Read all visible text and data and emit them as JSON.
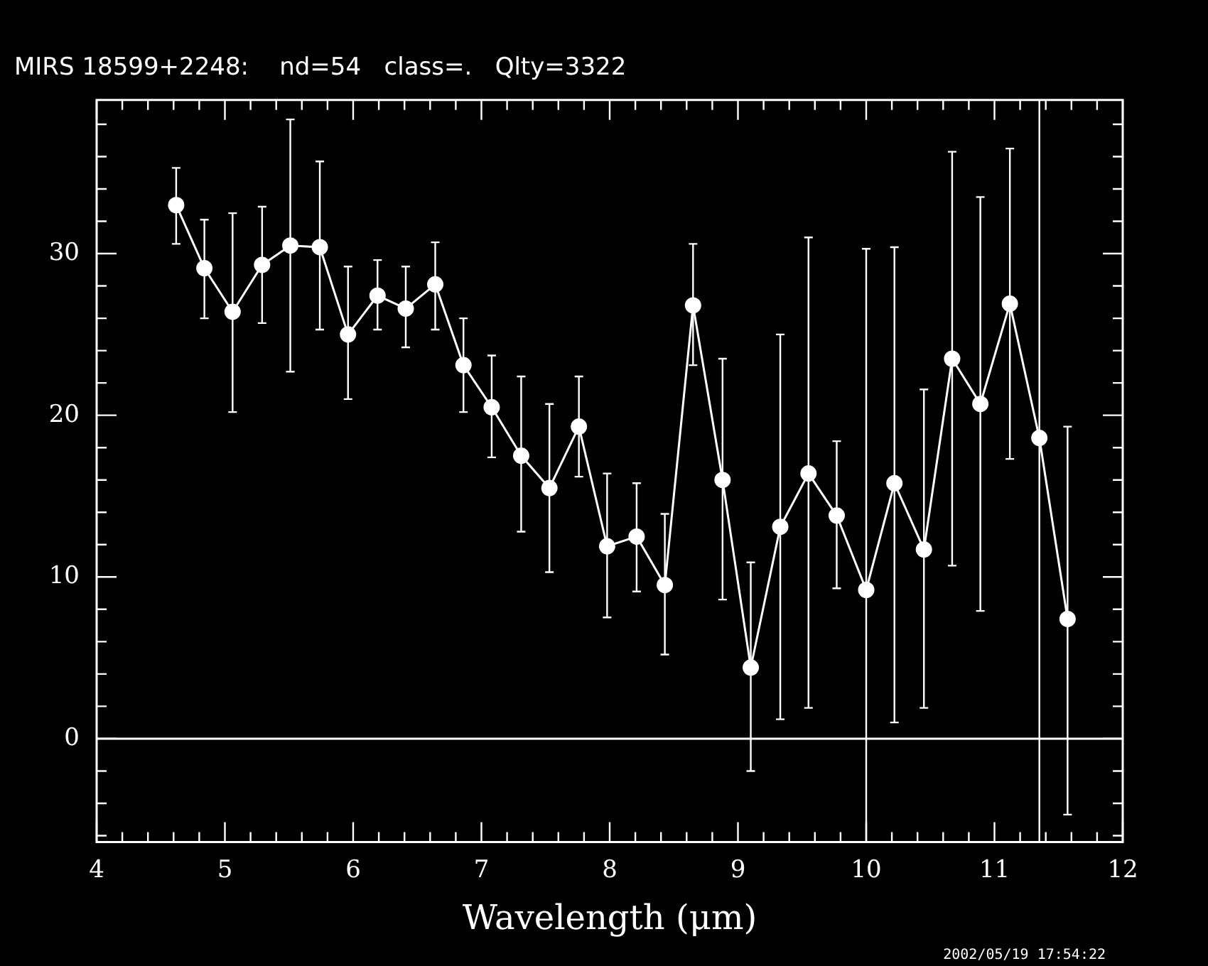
{
  "chart_data": {
    "type": "line",
    "title": "MIRS 18599+2248:    nd=54   class=.   Qlty=3322",
    "xlabel": "Wavelength (μm)",
    "x": [
      4.62,
      4.84,
      5.06,
      5.29,
      5.51,
      5.74,
      5.96,
      6.19,
      6.41,
      6.64,
      6.86,
      7.08,
      7.31,
      7.53,
      7.76,
      7.98,
      8.21,
      8.43,
      8.65,
      8.88,
      9.1,
      9.33,
      9.55,
      9.77,
      10.0,
      10.22,
      10.45,
      10.67,
      10.89,
      11.12,
      11.35,
      11.57
    ],
    "series": [
      {
        "color": "#ffffff",
        "values": [
          33.0,
          29.1,
          26.4,
          29.3,
          30.5,
          30.4,
          25.0,
          27.4,
          26.6,
          28.1,
          23.1,
          20.5,
          17.5,
          15.5,
          19.3,
          11.9,
          12.5,
          9.5,
          26.8,
          16.0,
          4.4,
          13.1,
          16.4,
          13.8,
          9.2,
          15.8,
          11.7,
          23.5,
          20.7,
          26.9,
          18.6,
          7.4
        ],
        "errors": [
          [
            30.6,
            35.3
          ],
          [
            26.0,
            32.1
          ],
          [
            20.2,
            32.5
          ],
          [
            25.7,
            32.9
          ],
          [
            22.7,
            38.3
          ],
          [
            25.3,
            35.7
          ],
          [
            21.0,
            29.2
          ],
          [
            25.3,
            29.6
          ],
          [
            24.2,
            29.2
          ],
          [
            25.3,
            30.7
          ],
          [
            20.2,
            26.0
          ],
          [
            17.4,
            23.7
          ],
          [
            12.8,
            22.4
          ],
          [
            10.3,
            20.7
          ],
          [
            16.2,
            22.4
          ],
          [
            7.5,
            16.4
          ],
          [
            9.1,
            15.8
          ],
          [
            5.2,
            13.9
          ],
          [
            23.1,
            30.6
          ],
          [
            8.6,
            23.5
          ],
          [
            -2.0,
            10.9
          ],
          [
            1.2,
            25.0
          ],
          [
            1.9,
            31.0
          ],
          [
            9.3,
            18.4
          ],
          [
            -6.4,
            30.3
          ],
          [
            1.0,
            30.4
          ],
          [
            1.9,
            21.6
          ],
          [
            10.7,
            36.3
          ],
          [
            7.9,
            33.5
          ],
          [
            17.3,
            36.5
          ],
          [
            -6.4,
            39.5
          ],
          [
            -4.7,
            19.3
          ]
        ]
      }
    ],
    "xlim": [
      4,
      12
    ],
    "xticks": [
      4,
      {
        "value": 4.2,
        "label": null
      },
      {
        "value": 4.4,
        "label": null
      },
      {
        "value": 4.6,
        "label": null
      },
      {
        "value": 4.8,
        "label": null
      },
      5,
      {
        "value": 5.2,
        "label": null
      },
      {
        "value": 5.4,
        "label": null
      },
      {
        "value": 5.6,
        "label": null
      },
      {
        "value": 5.8,
        "label": null
      },
      6,
      {
        "value": 6.2,
        "label": null
      },
      {
        "value": 6.4,
        "label": null
      },
      {
        "value": 6.6,
        "label": null
      },
      {
        "value": 6.8,
        "label": null
      },
      7,
      {
        "value": 7.2,
        "label": null
      },
      {
        "value": 7.4,
        "label": null
      },
      {
        "value": 7.6,
        "label": null
      },
      {
        "value": 7.8,
        "label": null
      },
      8,
      {
        "value": 8.2,
        "label": null
      },
      {
        "value": 8.4,
        "label": null
      },
      {
        "value": 8.6,
        "label": null
      },
      {
        "value": 8.8,
        "label": null
      },
      9,
      {
        "value": 9.2,
        "label": null
      },
      {
        "value": 9.4,
        "label": null
      },
      {
        "value": 9.6,
        "label": null
      },
      {
        "value": 9.8,
        "label": null
      },
      10,
      {
        "value": 10.2,
        "label": null
      },
      {
        "value": 10.4,
        "label": null
      },
      {
        "value": 10.6,
        "label": null
      },
      {
        "value": 10.8,
        "label": null
      },
      11,
      {
        "value": 11.2,
        "label": null
      },
      {
        "value": 11.4,
        "label": null
      },
      {
        "value": 11.6,
        "label": null
      },
      {
        "value": 11.8,
        "label": null
      },
      12
    ],
    "ylim": [
      -6.4,
      39.5
    ],
    "yticks": [
      {
        "value": -6,
        "label": null
      },
      {
        "value": -4,
        "label": null
      },
      {
        "value": -2,
        "label": null
      },
      0,
      {
        "value": 2,
        "label": null
      },
      {
        "value": 4,
        "label": null
      },
      {
        "value": 6,
        "label": null
      },
      {
        "value": 8,
        "label": null
      },
      10,
      {
        "value": 12,
        "label": null
      },
      {
        "value": 14,
        "label": null
      },
      {
        "value": 16,
        "label": null
      },
      {
        "value": 18,
        "label": null
      },
      20,
      {
        "value": 22,
        "label": null
      },
      {
        "value": 24,
        "label": null
      },
      {
        "value": 26,
        "label": null
      },
      {
        "value": 28,
        "label": null
      },
      30,
      {
        "value": 32,
        "label": null
      },
      {
        "value": 34,
        "label": null
      },
      {
        "value": 36,
        "label": null
      },
      {
        "value": 38,
        "label": null
      }
    ],
    "ref_lines": [
      {
        "axis": "y",
        "value": 0,
        "color": "#ffffff"
      }
    ],
    "marker": "circle",
    "line_style": "solid",
    "grid": false,
    "legend": false,
    "annotations": [
      "2002/05/19 17:54:22"
    ]
  }
}
